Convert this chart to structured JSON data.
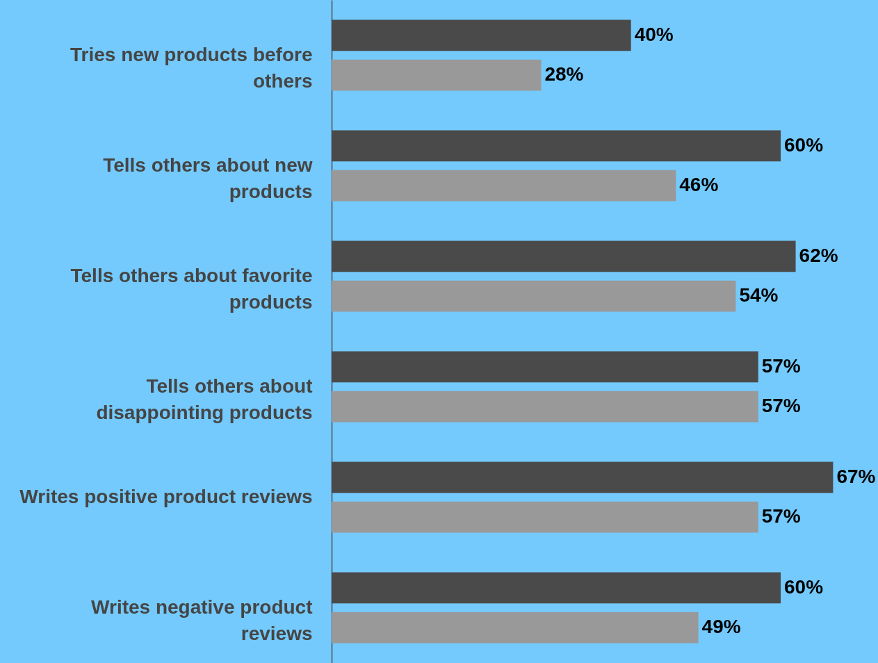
{
  "chart_data": {
    "type": "bar",
    "orientation": "horizontal",
    "categories": [
      "Tries new products before others",
      "Tells others about new products",
      "Tells others about favorite products",
      "Tells others about disappointing products",
      "Writes positive product reviews",
      "Writes negative product reviews"
    ],
    "series": [
      {
        "color": "#4a4a4a",
        "values": [
          40,
          60,
          62,
          57,
          67,
          60
        ],
        "value_labels": [
          "40%",
          "60%",
          "62%",
          "57%",
          "67%",
          "60%"
        ]
      },
      {
        "color": "#999999",
        "values": [
          28,
          46,
          54,
          57,
          57,
          49
        ],
        "value_labels": [
          "28%",
          "46%",
          "54%",
          "57%",
          "57%",
          "49%"
        ]
      }
    ],
    "xlim": [
      0,
      73
    ],
    "tick_labels": "y"
  }
}
